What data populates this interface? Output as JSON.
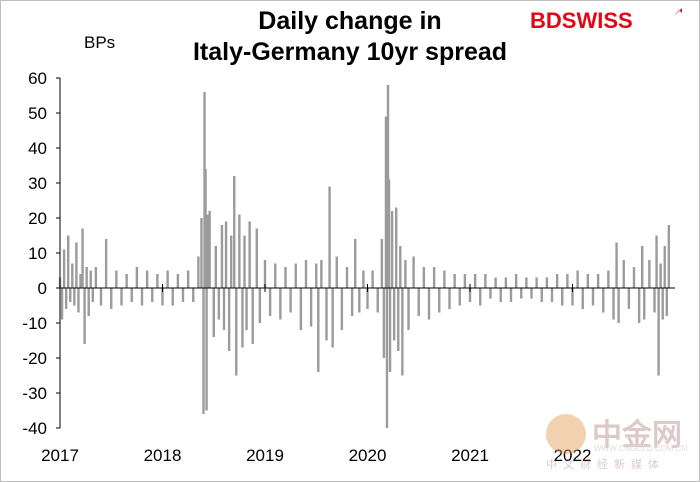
{
  "title_line1": "Daily change in",
  "title_line2": "Italy-Germany 10yr spread",
  "brand_bd": "BD",
  "brand_swiss": "SWISS",
  "watermark": {
    "brand": "中金网",
    "url": "WWW.CNGOLD.COM.CN",
    "tagline": "中文财经新媒体"
  },
  "colors": {
    "series": "#9b9b9c",
    "brand": "#e30613",
    "axis": "#000000"
  },
  "chart_data": {
    "type": "bar",
    "title": "Daily change in Italy-Germany 10yr spread",
    "ylabel": "BPs",
    "ylim": [
      -40,
      60
    ],
    "yticks": [
      60,
      50,
      40,
      30,
      20,
      10,
      0,
      -10,
      -20,
      -30,
      -40
    ],
    "xlim": [
      2017,
      2023
    ],
    "xtick_labels": [
      "2017",
      "2018",
      "2019",
      "2020",
      "2021",
      "2022"
    ],
    "xtick_values": [
      2017,
      2018,
      2019,
      2020,
      2021,
      2022
    ],
    "grid": false,
    "series": [
      {
        "values": [
          [
            2017.0,
            3
          ],
          [
            2017.02,
            -9
          ],
          [
            2017.04,
            11
          ],
          [
            2017.06,
            -6
          ],
          [
            2017.08,
            15
          ],
          [
            2017.1,
            -4
          ],
          [
            2017.12,
            7
          ],
          [
            2017.14,
            -5
          ],
          [
            2017.16,
            13
          ],
          [
            2017.18,
            -7
          ],
          [
            2017.2,
            4
          ],
          [
            2017.22,
            17
          ],
          [
            2017.24,
            -16
          ],
          [
            2017.26,
            6
          ],
          [
            2017.28,
            -8
          ],
          [
            2017.3,
            5
          ],
          [
            2017.32,
            -4
          ],
          [
            2017.35,
            6
          ],
          [
            2017.4,
            -5
          ],
          [
            2017.45,
            14
          ],
          [
            2017.5,
            -6
          ],
          [
            2017.55,
            5
          ],
          [
            2017.6,
            -5
          ],
          [
            2017.65,
            4
          ],
          [
            2017.7,
            -4
          ],
          [
            2017.75,
            6
          ],
          [
            2017.8,
            -5
          ],
          [
            2017.85,
            5
          ],
          [
            2017.9,
            -4
          ],
          [
            2017.95,
            4
          ],
          [
            2018.0,
            -5
          ],
          [
            2018.05,
            5
          ],
          [
            2018.1,
            -5
          ],
          [
            2018.15,
            4
          ],
          [
            2018.2,
            -4
          ],
          [
            2018.25,
            5
          ],
          [
            2018.3,
            -4
          ],
          [
            2018.35,
            9
          ],
          [
            2018.38,
            20
          ],
          [
            2018.4,
            -36
          ],
          [
            2018.41,
            56
          ],
          [
            2018.42,
            34
          ],
          [
            2018.43,
            -35
          ],
          [
            2018.44,
            21
          ],
          [
            2018.46,
            22
          ],
          [
            2018.5,
            -14
          ],
          [
            2018.52,
            12
          ],
          [
            2018.55,
            -9
          ],
          [
            2018.58,
            18
          ],
          [
            2018.6,
            -12
          ],
          [
            2018.62,
            19
          ],
          [
            2018.65,
            -18
          ],
          [
            2018.67,
            15
          ],
          [
            2018.7,
            32
          ],
          [
            2018.72,
            -25
          ],
          [
            2018.75,
            21
          ],
          [
            2018.78,
            -17
          ],
          [
            2018.8,
            15
          ],
          [
            2018.82,
            -12
          ],
          [
            2018.85,
            19
          ],
          [
            2018.88,
            -16
          ],
          [
            2018.92,
            17
          ],
          [
            2018.95,
            -10
          ],
          [
            2019.0,
            8
          ],
          [
            2019.05,
            -8
          ],
          [
            2019.1,
            7
          ],
          [
            2019.15,
            -9
          ],
          [
            2019.2,
            6
          ],
          [
            2019.25,
            -7
          ],
          [
            2019.3,
            7
          ],
          [
            2019.35,
            -12
          ],
          [
            2019.4,
            8
          ],
          [
            2019.45,
            -11
          ],
          [
            2019.5,
            7
          ],
          [
            2019.52,
            -24
          ],
          [
            2019.55,
            8
          ],
          [
            2019.6,
            -15
          ],
          [
            2019.63,
            29
          ],
          [
            2019.66,
            -17
          ],
          [
            2019.7,
            9
          ],
          [
            2019.75,
            -12
          ],
          [
            2019.8,
            6
          ],
          [
            2019.85,
            -8
          ],
          [
            2019.88,
            14
          ],
          [
            2019.92,
            -7
          ],
          [
            2019.96,
            5
          ],
          [
            2020.0,
            -6
          ],
          [
            2020.05,
            5
          ],
          [
            2020.1,
            -7
          ],
          [
            2020.14,
            14
          ],
          [
            2020.16,
            -20
          ],
          [
            2020.18,
            49
          ],
          [
            2020.19,
            -40
          ],
          [
            2020.2,
            58
          ],
          [
            2020.21,
            31
          ],
          [
            2020.22,
            -24
          ],
          [
            2020.24,
            22
          ],
          [
            2020.26,
            -15
          ],
          [
            2020.28,
            23
          ],
          [
            2020.3,
            -18
          ],
          [
            2020.32,
            12
          ],
          [
            2020.34,
            -25
          ],
          [
            2020.37,
            8
          ],
          [
            2020.4,
            -12
          ],
          [
            2020.45,
            9
          ],
          [
            2020.5,
            -8
          ],
          [
            2020.55,
            6
          ],
          [
            2020.6,
            -9
          ],
          [
            2020.65,
            6
          ],
          [
            2020.7,
            -7
          ],
          [
            2020.75,
            5
          ],
          [
            2020.8,
            -6
          ],
          [
            2020.85,
            4
          ],
          [
            2020.9,
            -5
          ],
          [
            2020.95,
            4
          ],
          [
            2021.0,
            -4
          ],
          [
            2021.05,
            4
          ],
          [
            2021.1,
            -5
          ],
          [
            2021.15,
            4
          ],
          [
            2021.2,
            -3
          ],
          [
            2021.25,
            3
          ],
          [
            2021.3,
            -4
          ],
          [
            2021.35,
            3
          ],
          [
            2021.4,
            -4
          ],
          [
            2021.45,
            4
          ],
          [
            2021.5,
            -3
          ],
          [
            2021.55,
            3
          ],
          [
            2021.6,
            -3
          ],
          [
            2021.65,
            3
          ],
          [
            2021.7,
            -4
          ],
          [
            2021.75,
            3
          ],
          [
            2021.8,
            -4
          ],
          [
            2021.85,
            4
          ],
          [
            2021.9,
            -5
          ],
          [
            2021.95,
            4
          ],
          [
            2022.0,
            -5
          ],
          [
            2022.05,
            5
          ],
          [
            2022.1,
            -6
          ],
          [
            2022.15,
            4
          ],
          [
            2022.2,
            -5
          ],
          [
            2022.25,
            4
          ],
          [
            2022.3,
            -7
          ],
          [
            2022.35,
            5
          ],
          [
            2022.4,
            -9
          ],
          [
            2022.43,
            13
          ],
          [
            2022.45,
            -10
          ],
          [
            2022.5,
            8
          ],
          [
            2022.55,
            -6
          ],
          [
            2022.6,
            6
          ],
          [
            2022.65,
            -10
          ],
          [
            2022.68,
            12
          ],
          [
            2022.7,
            -9
          ],
          [
            2022.75,
            8
          ],
          [
            2022.8,
            -7
          ],
          [
            2022.82,
            15
          ],
          [
            2022.84,
            -25
          ],
          [
            2022.86,
            7
          ],
          [
            2022.88,
            -9
          ],
          [
            2022.9,
            12
          ],
          [
            2022.92,
            -8
          ],
          [
            2022.94,
            18
          ]
        ]
      }
    ]
  }
}
